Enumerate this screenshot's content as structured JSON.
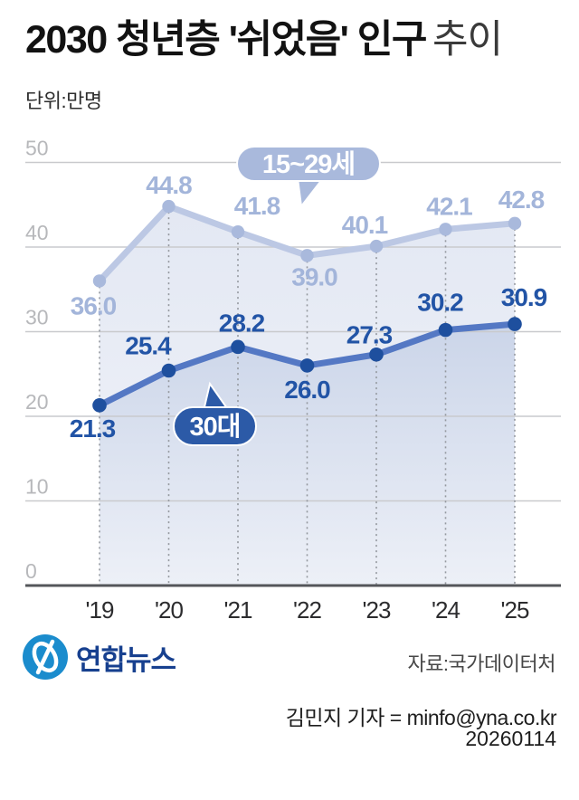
{
  "header": {
    "title_main": "2030 청년층 '쉬었음' 인구",
    "title_trailing": "추이",
    "unit_label": "단위:만명"
  },
  "chart_data": {
    "type": "line",
    "title": "2030 청년층 '쉬었음' 인구 추이",
    "unit": "만명",
    "categories": [
      "'19",
      "'20",
      "'21",
      "'22",
      "'23",
      "'24",
      "'25"
    ],
    "series": [
      {
        "name": "15~29세",
        "values": [
          36.0,
          44.8,
          41.8,
          39.0,
          40.1,
          42.1,
          42.8
        ],
        "line_color": "#bcc8e4",
        "point_color": "#a9b9dc",
        "label_color": "#a3b5da",
        "callout_color": "#a9b9dc",
        "area_top": "#e3e8f3",
        "area_bottom": "#f1f3f9"
      },
      {
        "name": "30대",
        "values": [
          21.3,
          25.4,
          28.2,
          26.0,
          27.3,
          30.2,
          30.9
        ],
        "line_color": "#5478c4",
        "point_color": "#1e4f9e",
        "label_color": "#2254a6",
        "callout_color": "#2c5aa7",
        "area_top": "#cbd5e9",
        "area_bottom": "#edf0f7"
      }
    ],
    "ylim": [
      0,
      50
    ],
    "yticks": [
      0,
      10,
      20,
      30,
      40,
      50
    ],
    "grid": true,
    "xlabel": "",
    "ylabel": "",
    "legend_position": "callout-bubbles"
  },
  "chart_style": {
    "grid_color": "#c9cacd",
    "axis_color": "#54565a",
    "dotted_guide_color": "#94989e",
    "ytick_color": "#b7b8bb",
    "xtick_color": "#2c2c2e",
    "callout_text_color": "#ffffff"
  },
  "footer": {
    "logo_text": "연합뉴스",
    "logo_brand_color": "#1b8ccd",
    "logo_text_color": "#17408f",
    "source": "자료:국가데이터처",
    "byline": "김민지 기자 = minfo@yna.co.kr",
    "date": "20260114"
  }
}
